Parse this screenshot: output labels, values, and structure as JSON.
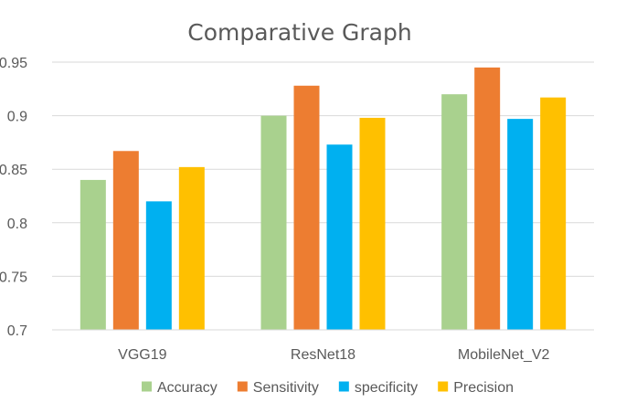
{
  "chart_data": {
    "type": "bar",
    "title": "Comparative Graph",
    "xlabel": "",
    "ylabel": "",
    "categories": [
      "VGG19",
      "ResNet18",
      "MobileNet_V2"
    ],
    "series": [
      {
        "name": "Accuracy",
        "color": "#a9d18e",
        "values": [
          0.84,
          0.9,
          0.92
        ]
      },
      {
        "name": "Sensitivity",
        "color": "#ed7d31",
        "values": [
          0.867,
          0.928,
          0.945
        ]
      },
      {
        "name": "specificity",
        "color": "#00b0f0",
        "values": [
          0.82,
          0.873,
          0.897
        ]
      },
      {
        "name": "Precision",
        "color": "#ffc000",
        "values": [
          0.852,
          0.898,
          0.917
        ]
      }
    ],
    "ylim": [
      0.7,
      0.95
    ],
    "yticks": [
      "0.7",
      "0.75",
      "0.8",
      "0.85",
      "0.9",
      "0.95"
    ],
    "grid": true,
    "legend_position": "bottom"
  }
}
